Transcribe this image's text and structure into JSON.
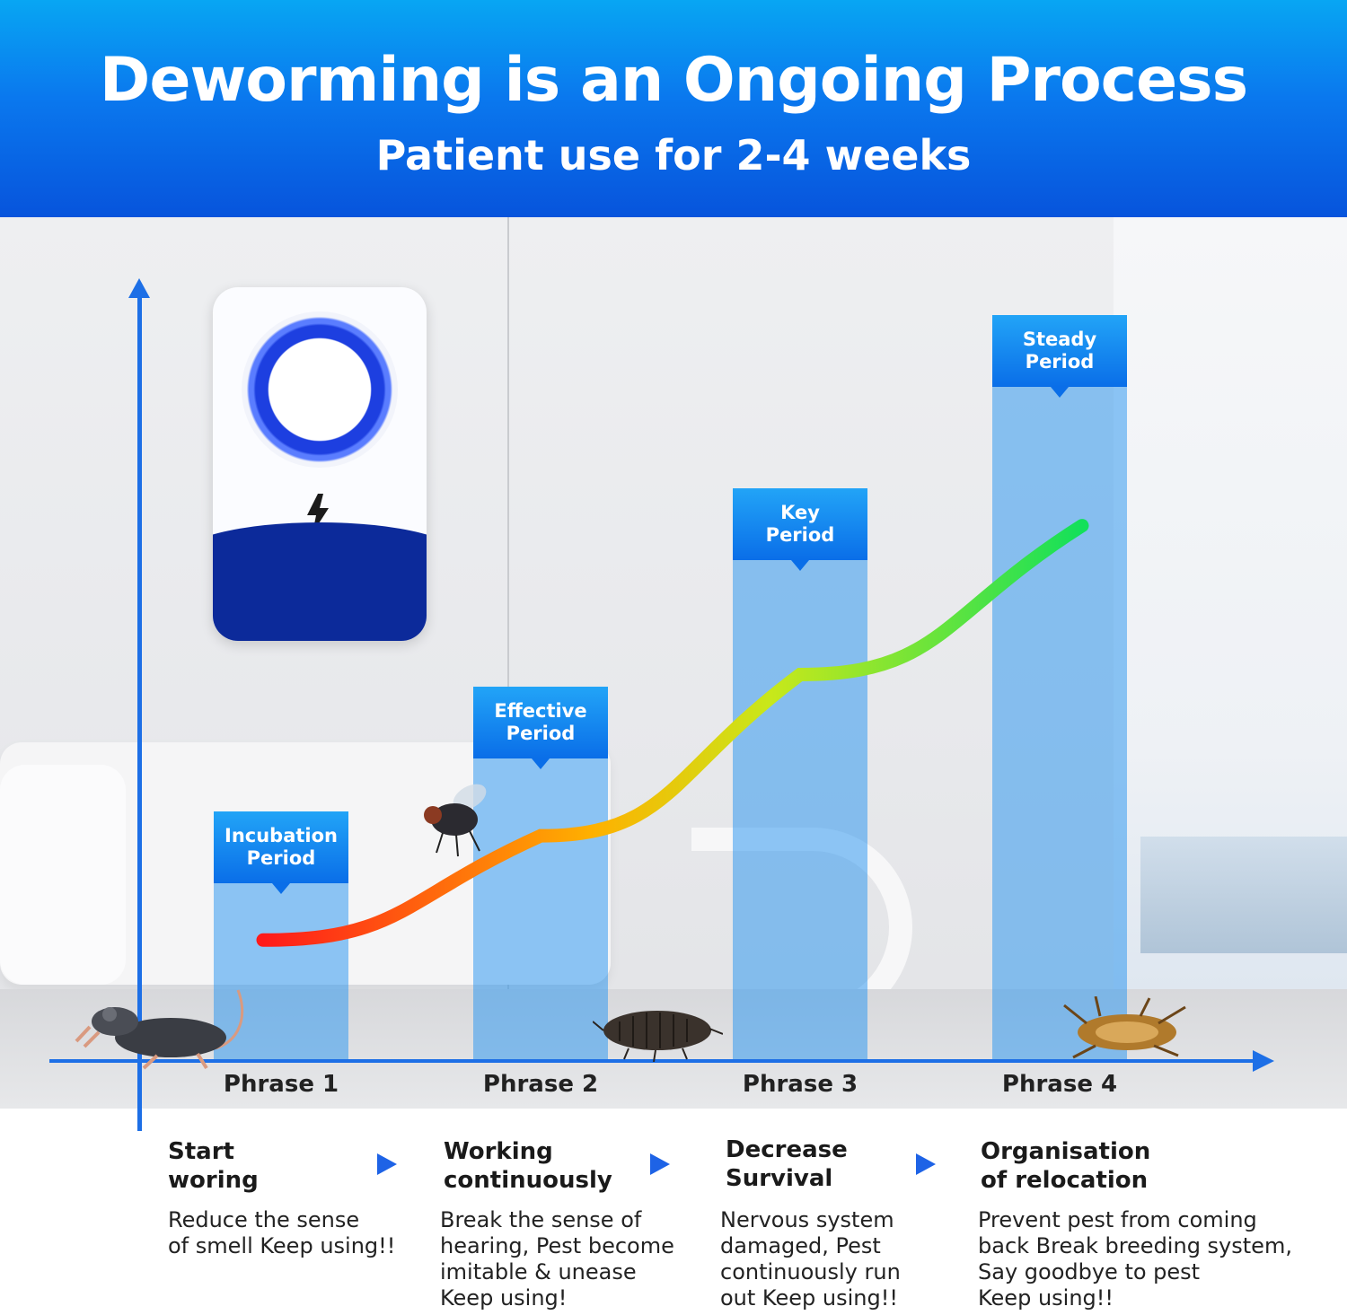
{
  "header": {
    "title": "Deworming is an Ongoing Process",
    "subtitle": "Patient use for 2-4 weeks"
  },
  "colors": {
    "header_top": "#08a6f3",
    "header_bottom": "#0754dc",
    "bar_fill": "#2a96f0",
    "label_fill": "#0a6ee8",
    "axis": "#1d6fe6",
    "device_dark": "#0c2a9a",
    "device_ring": "#1d3fe0",
    "curve_start": "#ff1a1a",
    "curve_mid": "#ffcc00",
    "curve_end": "#13e05a"
  },
  "chart_data": {
    "type": "bar",
    "categories": [
      "Phrase 1",
      "Phrase 2",
      "Phrase 3",
      "Phrase 4"
    ],
    "bar_labels": [
      "Incubation Period",
      "Effective Period",
      "Key Period",
      "Steady Period"
    ],
    "values": [
      1.0,
      1.5,
      2.3,
      3.0
    ],
    "ylim": [
      0,
      3.4
    ],
    "trend_curve": {
      "type": "line",
      "values": [
        0.48,
        0.9,
        1.55,
        2.15
      ]
    },
    "grid": false,
    "legend": "none"
  },
  "steps": [
    {
      "title": "Start\nworing",
      "description": "Reduce the sense\nof smell Keep using!!"
    },
    {
      "title": "Working\ncontinuously",
      "description": "Break the sense of\nhearing, Pest become\nimitable & unease\nKeep using!"
    },
    {
      "title": "Decrease\nSurvival",
      "description": "Nervous system\ndamaged, Pest\ncontinuously run\nout Keep using!!"
    },
    {
      "title": "Organisation\nof relocation",
      "description": "Prevent pest from coming\nback Break breeding system,\nSay goodbye to pest\nKeep using!!"
    }
  ],
  "icons": [
    "lightning-bolt-icon",
    "rat-icon",
    "fly-icon",
    "woodlouse-icon",
    "dead-cockroach-icon",
    "step-arrow-icon"
  ]
}
